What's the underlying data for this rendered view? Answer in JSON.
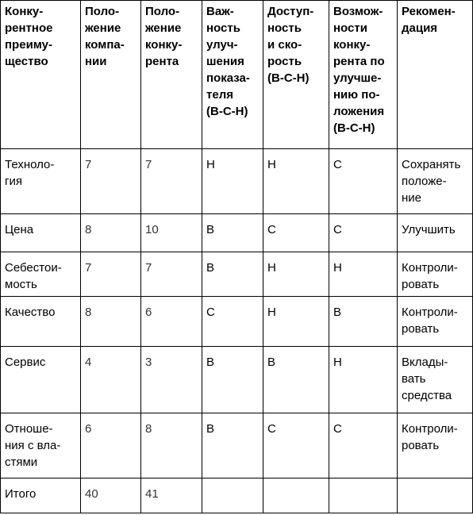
{
  "table": {
    "headers": [
      "Конку-\nрентное\nпреиму-\nщество",
      "Поло-\nжение\nкомпа-\nнии",
      "Поло-\nжение\nконку-\nрента",
      "Важ-\nность\nулуч-\nшения\nпоказа-\nтеля\n(В-С-Н)",
      "Доступ-\nность\nи ско-\nрость\n(В-С-Н)",
      "Возмож-\nности\nконку-\nрента по\nулучше-\nнию по-\nложения\n(В-С-Н)",
      "Рекомен-\nдация"
    ],
    "rows": [
      [
        "Техноло-\nгия",
        "7",
        "7",
        "Н",
        "Н",
        "С",
        "Сохранять\nположе-\nние"
      ],
      [
        "Цена",
        "8",
        "10",
        "В",
        "С",
        "С",
        "Улучшить"
      ],
      [
        "Себестои-\nмость",
        "7",
        "7",
        "В",
        "Н",
        "Н",
        "Контроли-\nровать"
      ],
      [
        "Качество",
        "8",
        "6",
        "С",
        "Н",
        "В",
        "Контроли-\nровать"
      ],
      [
        "Сервис",
        "4",
        "3",
        "В",
        "В",
        "Н",
        "Вклады-\nвать\nсредства"
      ],
      [
        "Отноше-\nния с вла-\nстями",
        "6",
        "8",
        "В",
        "С",
        "С",
        "Контроли-\nровать"
      ],
      [
        "Итого",
        "40",
        "41",
        "",
        "",
        "",
        ""
      ]
    ]
  }
}
